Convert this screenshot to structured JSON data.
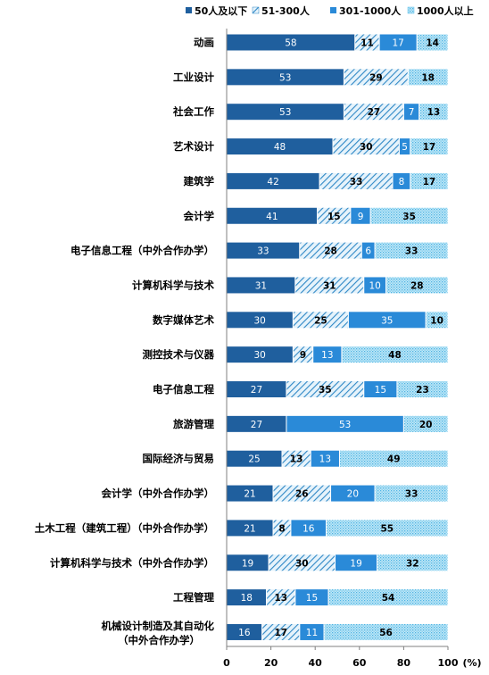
{
  "chart_data": {
    "type": "bar",
    "orientation": "horizontal",
    "stacked": "percent",
    "categories": [
      "动画",
      "工业设计",
      "社会工作",
      "艺术设计",
      "建筑学",
      "会计学",
      "电子信息工程（中外合作办学）",
      "计算机科学与技术",
      "数字媒体艺术",
      "测控技术与仪器",
      "电子信息工程",
      "旅游管理",
      "国际经济与贸易",
      "会计学（中外合作办学）",
      "土木工程（建筑工程）（中外合作办学）",
      "计算机科学与技术（中外合作办学）",
      "工程管理",
      [
        "机械设计制造及其自动化",
        "（中外合作办学）"
      ]
    ],
    "series": [
      {
        "name": "50人及以下",
        "color": "#1f5f9e",
        "pattern": "solid",
        "values": [
          58,
          53,
          53,
          48,
          42,
          41,
          33,
          31,
          30,
          30,
          27,
          27,
          25,
          21,
          21,
          19,
          18,
          16
        ]
      },
      {
        "name": "51-300人",
        "color": "#2f88c6",
        "pattern": "hatch",
        "values": [
          11,
          29,
          27,
          30,
          33,
          15,
          28,
          31,
          25,
          9,
          35,
          0,
          13,
          26,
          8,
          30,
          13,
          17
        ]
      },
      {
        "name": "301-1000人",
        "color": "#2a8ad8",
        "pattern": "solid-light",
        "values": [
          17,
          0,
          7,
          5,
          8,
          9,
          6,
          10,
          35,
          13,
          15,
          53,
          13,
          20,
          16,
          19,
          15,
          11
        ]
      },
      {
        "name": "1000人以上",
        "color": "#5cc0ea",
        "pattern": "dots",
        "values": [
          14,
          18,
          13,
          17,
          17,
          35,
          33,
          28,
          10,
          48,
          23,
          20,
          49,
          33,
          55,
          32,
          54,
          56
        ]
      }
    ],
    "xlim": [
      0,
      100
    ],
    "xticks": [
      0,
      20,
      40,
      60,
      80,
      100
    ],
    "xunit": "(%)",
    "legend_position": "top-right",
    "grid": false
  }
}
